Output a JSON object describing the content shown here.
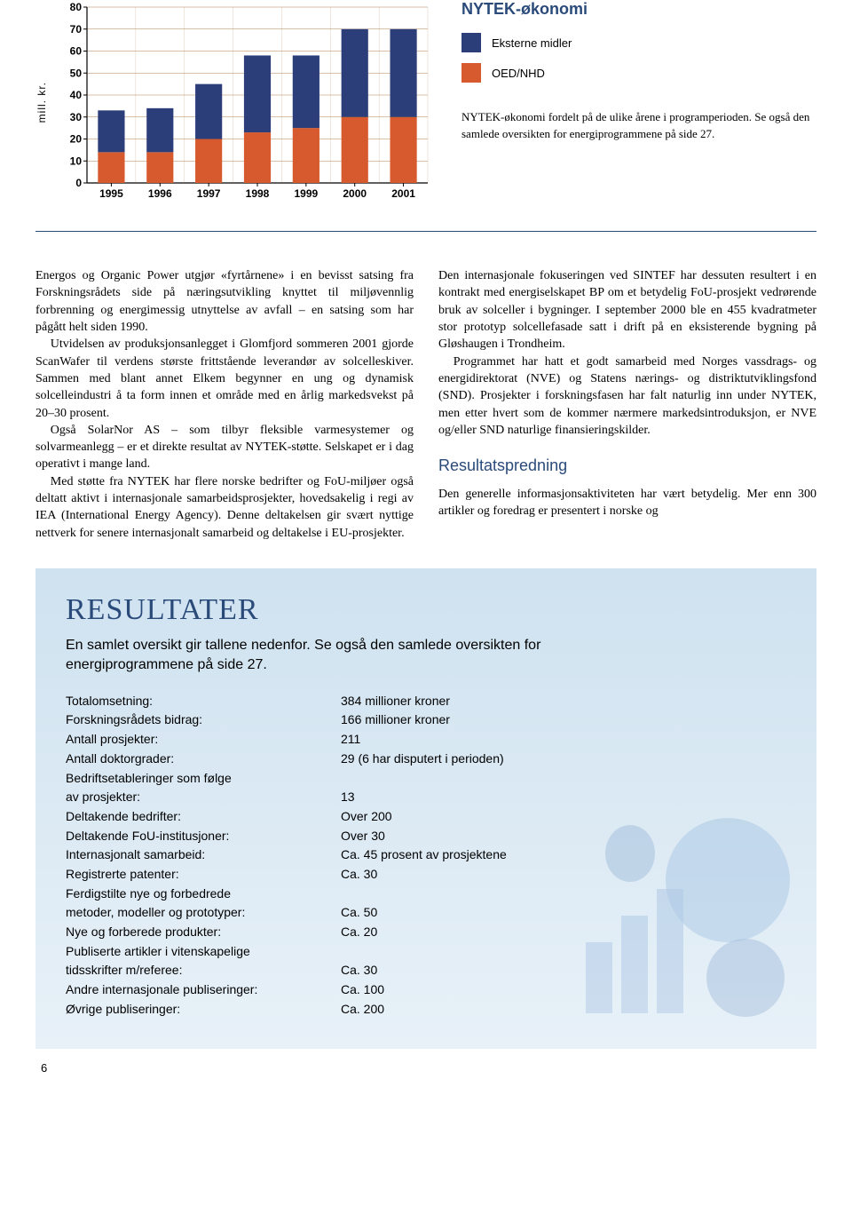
{
  "chart": {
    "type": "stacked-bar",
    "ylabel": "mill. kr.",
    "categories": [
      "1995",
      "1996",
      "1997",
      "1998",
      "1999",
      "2000",
      "2001"
    ],
    "series": [
      {
        "name": "OED/NHD",
        "color": "#d65a2e",
        "values": [
          14,
          14,
          20,
          23,
          25,
          30,
          30
        ]
      },
      {
        "name": "Eksterne midler",
        "color": "#2c3e7a",
        "values": [
          19,
          20,
          25,
          35,
          33,
          40,
          40
        ]
      }
    ],
    "ylim": [
      0,
      80
    ],
    "ytick_step": 10,
    "background_color": "#ffffff",
    "grid_color": "#b58050",
    "axis_tick_font": {
      "family": "Arial",
      "size": 12,
      "weight": "bold",
      "color": "#000"
    },
    "bar_width": 0.55
  },
  "legend": {
    "title": "NYTEK-økonomi",
    "items": [
      {
        "color": "#2c3e7a",
        "label": "Eksterne midler"
      },
      {
        "color": "#d65a2e",
        "label": "OED/NHD"
      }
    ],
    "caption": "NYTEK-økonomi fordelt på de ulike årene i programperioden. Se også den samlede oversikten for energiprogrammene på side 27."
  },
  "body": {
    "left": [
      "Energos og Organic Power utgjør «fyrtårnene» i en bevisst satsing fra Forskningsrådets side på næringsutvikling knyttet til miljøvennlig forbrenning og energimessig utnyttelse av avfall – en satsing som har pågått helt siden 1990.",
      "Utvidelsen av produksjonsanlegget i Glomfjord sommeren 2001 gjorde ScanWafer til verdens største frittstående leverandør av solcelleskiver. Sammen med blant annet Elkem begynner en ung og dynamisk solcelleindustri å ta form innen et område med en årlig markedsvekst på 20–30 prosent.",
      "Også SolarNor AS – som tilbyr fleksible varmesystemer og solvarmeanlegg – er et direkte resultat av NYTEK-støtte. Selskapet er i dag operativt i mange land.",
      "Med støtte fra NYTEK har flere norske bedrifter og FoU-miljøer også deltatt aktivt i internasjonale samarbeidsprosjekter, hovedsakelig i regi av IEA (International Energy Agency). Denne deltakelsen gir svært nyttige nettverk for senere internasjonalt samarbeid og deltakelse i EU-prosjekter."
    ],
    "right": [
      "Den internasjonale fokuseringen ved SINTEF har dessuten resultert i en kontrakt med energiselskapet BP om et betydelig FoU-prosjekt vedrørende bruk av solceller i bygninger. I september 2000 ble en 455 kvadratmeter stor prototyp solcellefasade satt i drift på en eksisterende bygning på Gløshaugen i Trondheim.",
      "Programmet har hatt et godt samarbeid med Norges vassdrags- og energidirektorat (NVE) og Statens nærings- og distriktutviklingsfond (SND). Prosjekter i forskningsfasen har falt naturlig inn under NYTEK, men etter hvert som de kommer nærmere markedsintroduksjon, er NVE og/eller SND naturlige finansieringskilder."
    ],
    "subhead": "Resultatspredning",
    "right2": [
      "Den generelle informasjonsaktiviteten har vært betydelig. Mer enn 300 artikler og foredrag er presentert i norske og"
    ]
  },
  "results": {
    "heading": "RESULTATER",
    "lead": "En samlet oversikt gir tallene nedenfor. Se også den samlede oversikten for energiprogrammene på side 27.",
    "rows": [
      {
        "label": "Totalomsetning:",
        "value": "384 millioner kroner"
      },
      {
        "label": "Forskningsrådets bidrag:",
        "value": "166 millioner kroner"
      },
      {
        "label": "Antall prosjekter:",
        "value": "211"
      },
      {
        "label": "Antall doktorgrader:",
        "value": "29  (6 har disputert i perioden)"
      },
      {
        "label": "Bedriftsetableringer som følge",
        "value": ""
      },
      {
        "label": "av prosjekter:",
        "value": "13"
      },
      {
        "label": "Deltakende bedrifter:",
        "value": "Over 200"
      },
      {
        "label": "Deltakende FoU-institusjoner:",
        "value": "Over 30"
      },
      {
        "label": "Internasjonalt samarbeid:",
        "value": "Ca. 45 prosent av prosjektene"
      },
      {
        "label": "Registrerte patenter:",
        "value": "Ca. 30"
      },
      {
        "label": "Ferdigstilte nye og forbedrede",
        "value": ""
      },
      {
        "label": "metoder, modeller og prototyper:",
        "value": "Ca. 50"
      },
      {
        "label": "Nye og forberede produkter:",
        "value": "Ca. 20"
      },
      {
        "label": "Publiserte artikler i vitenskapelige",
        "value": ""
      },
      {
        "label": "tidsskrifter m/referee:",
        "value": "Ca. 30"
      },
      {
        "label": "Andre internasjonale publiseringer:",
        "value": "Ca. 100"
      },
      {
        "label": "Øvrige publiseringer:",
        "value": "Ca. 200"
      }
    ]
  },
  "page_number": "6"
}
